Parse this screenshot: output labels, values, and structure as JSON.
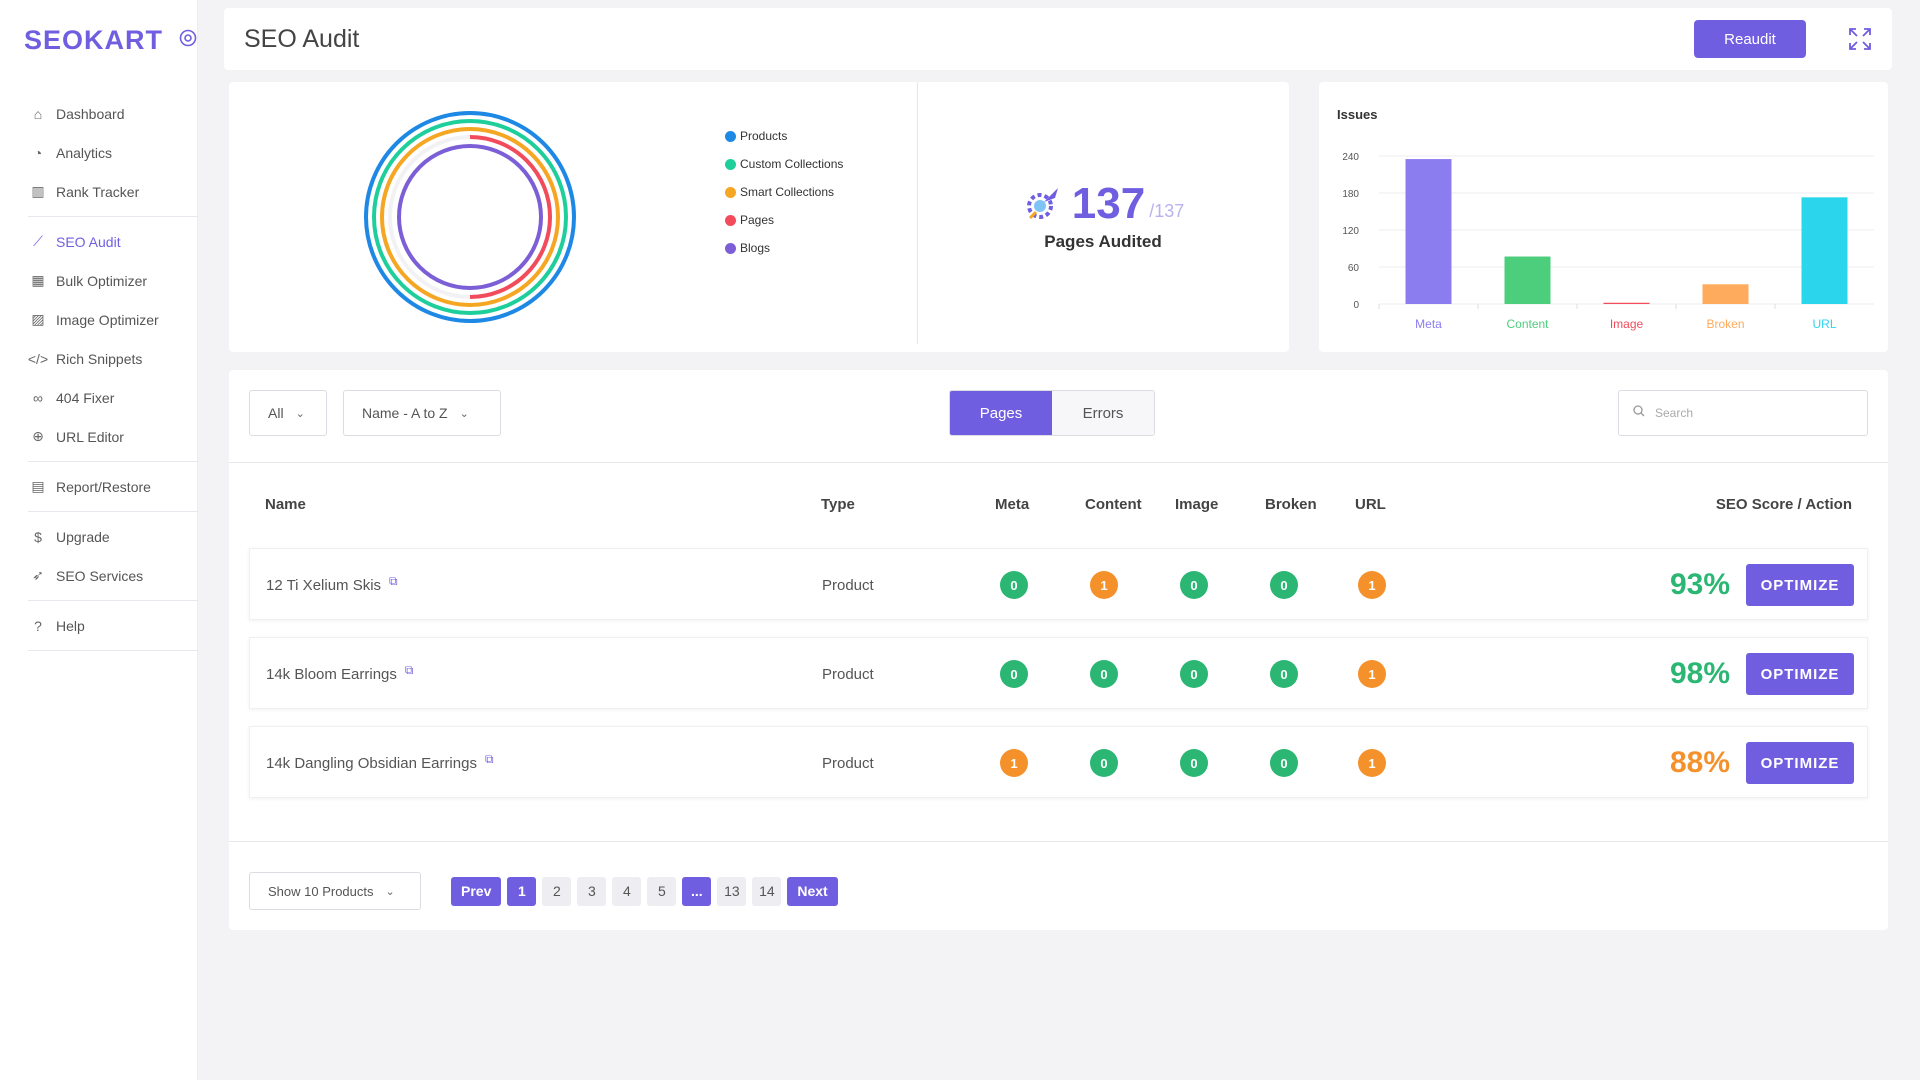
{
  "brand": {
    "logo_text": "SEOKART"
  },
  "sidebar": {
    "items": [
      {
        "label": "Dashboard"
      },
      {
        "label": "Analytics"
      },
      {
        "label": "Rank Tracker"
      },
      {
        "label": "SEO Audit"
      },
      {
        "label": "Bulk Optimizer"
      },
      {
        "label": "Image Optimizer"
      },
      {
        "label": "Rich Snippets"
      },
      {
        "label": "404 Fixer"
      },
      {
        "label": "URL Editor"
      },
      {
        "label": "Report/Restore"
      },
      {
        "label": "Upgrade"
      },
      {
        "label": "SEO Services"
      },
      {
        "label": "Help"
      }
    ],
    "active": "SEO Audit"
  },
  "header": {
    "title": "SEO Audit",
    "reaudit_label": "Reaudit"
  },
  "summary": {
    "legend": [
      {
        "label": "Products",
        "color": "#1e88e5"
      },
      {
        "label": "Custom Collections",
        "color": "#1fcf9b"
      },
      {
        "label": "Smart Collections",
        "color": "#f5a623"
      },
      {
        "label": "Pages",
        "color": "#f24b5b"
      },
      {
        "label": "Blogs",
        "color": "#7c5fd6"
      }
    ],
    "audited_count": "137",
    "audited_total": "/137",
    "audited_label": "Pages Audited"
  },
  "chart_data": {
    "type": "bar",
    "title": "Issues",
    "categories": [
      "Meta",
      "Content",
      "Image",
      "Broken",
      "URL"
    ],
    "values": [
      235,
      77,
      2,
      32,
      173
    ],
    "colors": [
      "#8b7cf0",
      "#4cce7d",
      "#f24b5b",
      "#ffab5e",
      "#2bd6ec"
    ],
    "yticks": [
      0,
      60,
      120,
      180,
      240
    ],
    "ylim": [
      0,
      240
    ]
  },
  "filters": {
    "type_select": "All",
    "sort_select": "Name - A to Z",
    "toggle": [
      "Pages",
      "Errors"
    ],
    "search_placeholder": "Search"
  },
  "table": {
    "columns": {
      "name": "Name",
      "type": "Type",
      "meta": "Meta",
      "content": "Content",
      "image": "Image",
      "broken": "Broken",
      "url": "URL",
      "score": "SEO Score / Action"
    },
    "optimize_label": "OPTIMIZE",
    "rows": [
      {
        "name": "12 Ti Xelium Skis",
        "type": "Product",
        "meta": "0",
        "content": "1",
        "image": "0",
        "broken": "0",
        "url": "1",
        "score": "93%"
      },
      {
        "name": "14k Bloom Earrings",
        "type": "Product",
        "meta": "0",
        "content": "0",
        "image": "0",
        "broken": "0",
        "url": "1",
        "score": "98%"
      },
      {
        "name": "14k Dangling Obsidian Earrings",
        "type": "Product",
        "meta": "1",
        "content": "0",
        "image": "0",
        "broken": "0",
        "url": "1",
        "score": "88%"
      }
    ]
  },
  "pagination": {
    "show_select": "Show 10 Products",
    "prev": "Prev",
    "pages": [
      "1",
      "2",
      "3",
      "4",
      "5",
      "...",
      "13",
      "14"
    ],
    "next": "Next"
  },
  "colors": {
    "accent": "#6f5fe0",
    "good": "#2bb673",
    "warn": "#f5912b"
  }
}
